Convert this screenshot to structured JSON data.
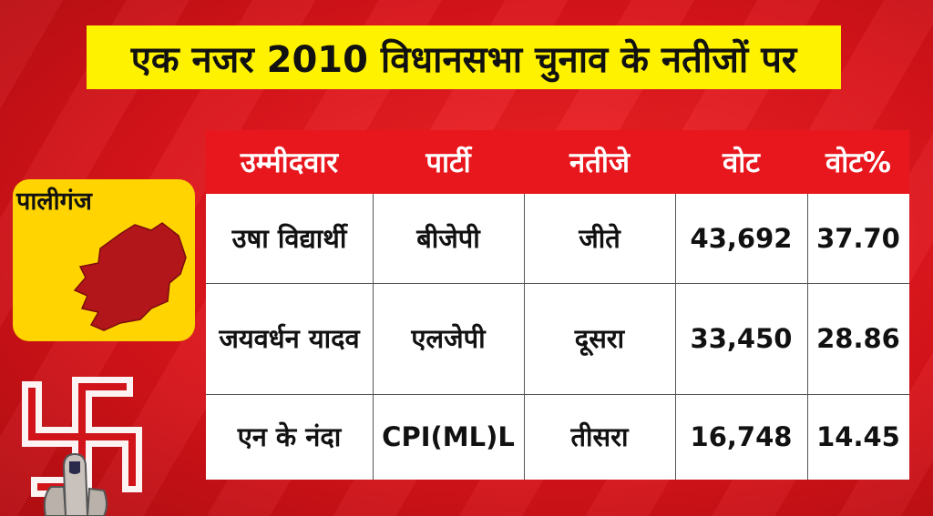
{
  "title": "एक नजर 2010 विधानसभा चुनाव के नतीजों पर",
  "place": "पालीगंज",
  "colors": {
    "background": "#e1161c",
    "title_bg": "#fff200",
    "header_bg": "#e8171d",
    "card_bg": "#ffd400",
    "map_fill": "#b3161a"
  },
  "icons": {
    "map": "map-icon",
    "emblem": "swastika-icon",
    "finger": "inked-finger-icon"
  },
  "table": {
    "headers": [
      "उम्मीदवार",
      "पार्टी",
      "नतीजे",
      "वोट",
      "वोट%"
    ],
    "rows": [
      {
        "candidate": "उषा विद्यार्थी",
        "party": "बीजेपी",
        "result": "जीते",
        "votes": "43,692",
        "pct": "37.70"
      },
      {
        "candidate": "जयवर्धन यादव",
        "party": "एलजेपी",
        "result": "दूसरा",
        "votes": "33,450",
        "pct": "28.86"
      },
      {
        "candidate": "एन के नंदा",
        "party": "CPI(ML)L",
        "result": "तीसरा",
        "votes": "16,748",
        "pct": "14.45"
      }
    ]
  }
}
